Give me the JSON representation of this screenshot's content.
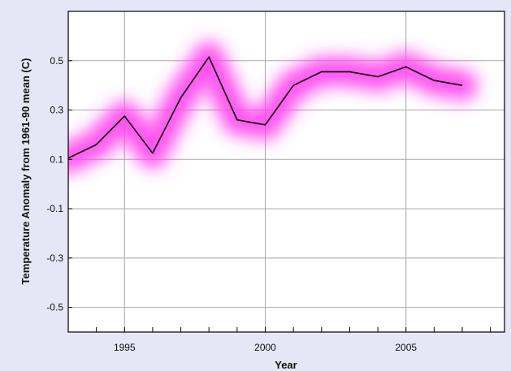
{
  "chart_data": {
    "type": "line",
    "title": "",
    "xlabel": "Year",
    "ylabel": "Temperature Anomaly from 1961-90 mean (C)",
    "xlim": [
      1993,
      2008.5
    ],
    "ylim": [
      -0.6,
      0.7
    ],
    "grid": true,
    "x_ticks": [
      1995,
      2000,
      2005
    ],
    "x_minor_ticks": [
      1993,
      1994,
      1995,
      1996,
      1997,
      1998,
      1999,
      2000,
      2001,
      2002,
      2003,
      2004,
      2005,
      2006,
      2007,
      2008
    ],
    "y_ticks": [
      -0.5,
      -0.3,
      -0.1,
      0.1,
      0.3,
      0.5
    ],
    "y_tick_labels": [
      "-0.5",
      "-0.3",
      "-0.1",
      "0.1",
      "0.3",
      "0.5"
    ],
    "x": [
      1993,
      1994,
      1995,
      1996,
      1997,
      1998,
      1999,
      2000,
      2001,
      2002,
      2003,
      2004,
      2005,
      2006,
      2007
    ],
    "series": [
      {
        "values": [
          0.105,
          0.16,
          0.275,
          0.125,
          0.35,
          0.515,
          0.26,
          0.24,
          0.4,
          0.455,
          0.455,
          0.435,
          0.475,
          0.42,
          0.4
        ],
        "color": "#000000"
      }
    ],
    "uncertainty_color": "#ff44ee",
    "plot_background": "#ffffff",
    "page_background": "#e6e6f7"
  }
}
